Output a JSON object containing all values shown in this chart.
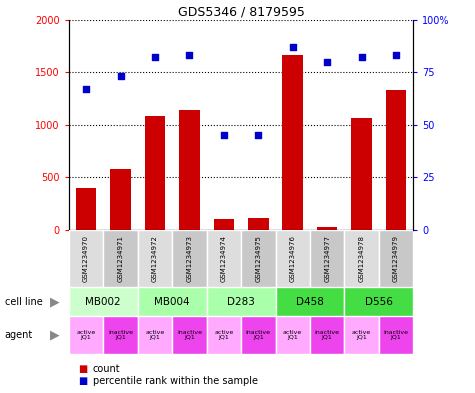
{
  "title": "GDS5346 / 8179595",
  "samples": [
    "GSM1234970",
    "GSM1234971",
    "GSM1234972",
    "GSM1234973",
    "GSM1234974",
    "GSM1234975",
    "GSM1234976",
    "GSM1234977",
    "GSM1234978",
    "GSM1234979"
  ],
  "counts": [
    400,
    580,
    1080,
    1140,
    100,
    110,
    1660,
    30,
    1060,
    1330
  ],
  "percentiles": [
    67,
    73,
    82,
    83,
    45,
    45,
    87,
    80,
    82,
    83
  ],
  "cell_lines": [
    {
      "label": "MB002",
      "start": 0,
      "end": 2,
      "color": "#ccffcc"
    },
    {
      "label": "MB004",
      "start": 2,
      "end": 4,
      "color": "#aaffaa"
    },
    {
      "label": "D283",
      "start": 4,
      "end": 6,
      "color": "#aaffaa"
    },
    {
      "label": "D458",
      "start": 6,
      "end": 8,
      "color": "#44dd44"
    },
    {
      "label": "D556",
      "start": 8,
      "end": 10,
      "color": "#44dd44"
    }
  ],
  "agent_labels": [
    "active\nJQ1",
    "inactive\nJQ1",
    "active\nJQ1",
    "inactive\nJQ1",
    "active\nJQ1",
    "inactive\nJQ1",
    "active\nJQ1",
    "inactive\nJQ1",
    "active\nJQ1",
    "inactive\nJQ1"
  ],
  "agent_colors_active": "#ffaaff",
  "agent_colors_inactive": "#ee44ee",
  "bar_color": "#cc0000",
  "scatter_color": "#0000cc",
  "ylim_left": [
    0,
    2000
  ],
  "ylim_right": [
    0,
    100
  ],
  "yticks_left": [
    0,
    500,
    1000,
    1500,
    2000
  ],
  "yticks_right": [
    0,
    25,
    50,
    75,
    100
  ],
  "yticklabels_right": [
    "0",
    "25",
    "50",
    "75",
    "100%"
  ]
}
